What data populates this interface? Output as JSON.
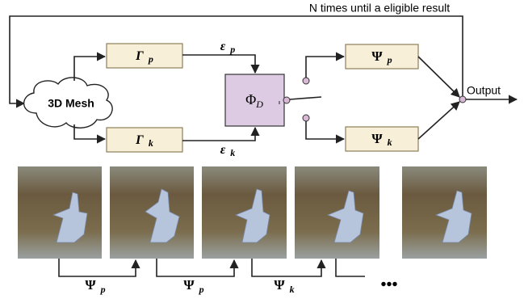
{
  "loop_label": "N times until a eligible result",
  "nodes": [
    {
      "symbol": "3D Mesh"
    },
    {
      "symbol": "Γ",
      "sub": "p"
    },
    {
      "symbol": "Γ",
      "sub": "k"
    },
    {
      "symbol": "Φ",
      "sub": "D"
    },
    {
      "symbol": "Ψ",
      "sub": "p"
    },
    {
      "symbol": "Ψ",
      "sub": "k"
    }
  ],
  "edge_labels": [
    {
      "symbol": "ε",
      "sub": "p"
    },
    {
      "symbol": "ε",
      "sub": "k"
    }
  ],
  "output_label": "Output",
  "sequence_labels": [
    {
      "symbol": "Ψ",
      "sub": "p"
    },
    {
      "symbol": "Ψ",
      "sub": "p"
    },
    {
      "symbol": "Ψ",
      "sub": "k"
    }
  ],
  "ellipsis": "•••"
}
